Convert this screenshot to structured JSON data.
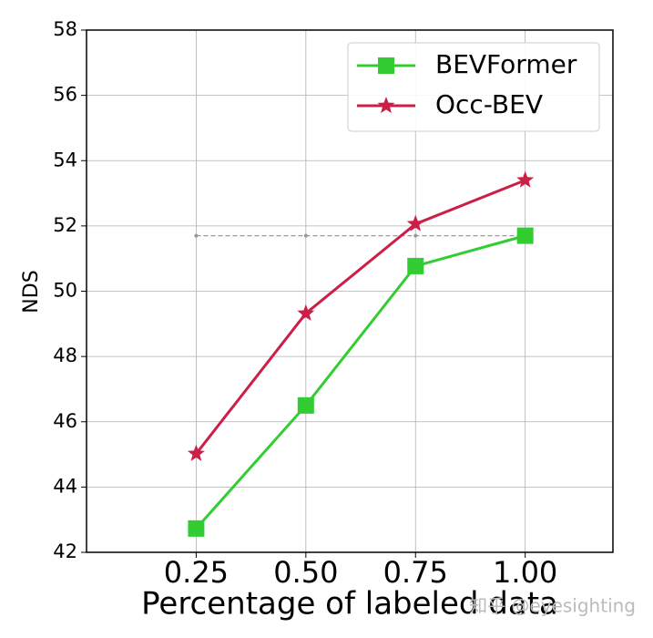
{
  "chart_data": {
    "type": "line",
    "x_label": "Percentage of labeled data",
    "y_label": "NDS",
    "x": [
      0.25,
      0.5,
      0.75,
      1.0
    ],
    "series": [
      {
        "name": "BEVFormer",
        "color": "#33cc33",
        "marker": "square",
        "values": [
          42.73,
          46.5,
          50.77,
          51.7
        ]
      },
      {
        "name": "Occ-BEV",
        "color": "#cc1f47",
        "marker": "star",
        "values": [
          45.02,
          49.32,
          52.06,
          53.4
        ]
      }
    ],
    "reference_line": {
      "y": 51.7,
      "x": [
        0.25,
        1.0
      ],
      "color": "#999999"
    },
    "xlim": [
      0,
      1.2
    ],
    "ylim": [
      42,
      58
    ],
    "xticks": [
      {
        "value": 0.25,
        "label": "0.25"
      },
      {
        "value": 0.5,
        "label": "0.50"
      },
      {
        "value": 0.75,
        "label": "0.75"
      },
      {
        "value": 1.0,
        "label": "1.00"
      }
    ],
    "yticks": [
      42,
      44,
      46,
      48,
      50,
      52,
      54,
      56,
      58
    ],
    "grid": true,
    "legend": "upper-right",
    "watermark": "知乎 @eyesighting"
  }
}
